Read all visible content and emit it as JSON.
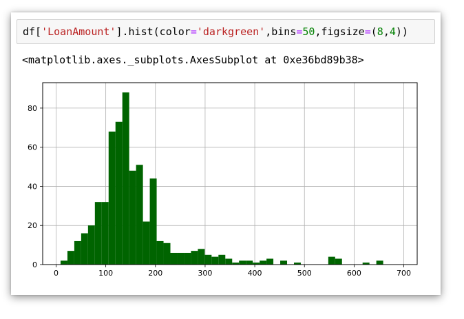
{
  "code_cell": {
    "segments": [
      {
        "text": "df[",
        "cls": ""
      },
      {
        "text": "'LoanAmount'",
        "cls": "tok-str"
      },
      {
        "text": "].hist(color",
        "cls": ""
      },
      {
        "text": "=",
        "cls": "tok-op"
      },
      {
        "text": "'darkgreen'",
        "cls": "tok-str"
      },
      {
        "text": ",bins",
        "cls": ""
      },
      {
        "text": "=",
        "cls": "tok-op"
      },
      {
        "text": "50",
        "cls": "tok-num"
      },
      {
        "text": ",figsize",
        "cls": ""
      },
      {
        "text": "=",
        "cls": "tok-op"
      },
      {
        "text": "(",
        "cls": ""
      },
      {
        "text": "8",
        "cls": "tok-num"
      },
      {
        "text": ",",
        "cls": ""
      },
      {
        "text": "4",
        "cls": "tok-num"
      },
      {
        "text": "))",
        "cls": ""
      }
    ]
  },
  "output": {
    "text": "<matplotlib.axes._subplots.AxesSubplot at 0xe36bd89b38>"
  },
  "colors": {
    "bar": "#006400",
    "grid": "#b0b0b0",
    "axes": "#000000"
  },
  "chart_data": {
    "type": "bar",
    "title": "",
    "xlabel": "",
    "ylabel": "",
    "grid": true,
    "xlim": [
      -27,
      727
    ],
    "ylim": [
      0,
      93
    ],
    "xticks": [
      0,
      100,
      200,
      300,
      400,
      500,
      600,
      700
    ],
    "yticks": [
      0,
      20,
      40,
      60,
      80
    ],
    "bin_start": 9,
    "bin_width": 13.82,
    "counts": [
      2,
      7,
      12,
      16,
      20,
      32,
      32,
      68,
      73,
      88,
      48,
      51,
      22,
      44,
      12,
      11,
      6,
      6,
      6,
      7,
      8,
      5,
      4,
      5,
      3,
      1,
      2,
      2,
      1,
      2,
      3,
      0,
      2,
      0,
      1,
      0,
      0,
      0,
      0,
      4,
      3,
      0,
      0,
      0,
      1,
      0,
      2,
      0,
      0,
      0
    ]
  }
}
